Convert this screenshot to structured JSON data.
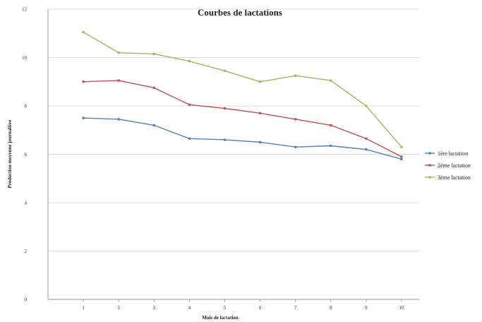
{
  "chart_data": {
    "type": "line",
    "title": "Courbes de lactations",
    "xlabel": "Mois de lactation",
    "ylabel": "Production moyenne journalière",
    "x": [
      1,
      2,
      3,
      4,
      5,
      6,
      7,
      8,
      9,
      10
    ],
    "xlim": [
      0,
      10.5
    ],
    "ylim": [
      0,
      12
    ],
    "yticks": [
      0,
      2,
      4,
      6,
      8,
      10,
      12
    ],
    "grid": true,
    "legend_position": "right",
    "series": [
      {
        "name": "1ère lactation",
        "color": "#4f81bd",
        "values": [
          7.5,
          7.45,
          7.2,
          6.65,
          6.6,
          6.5,
          6.3,
          6.35,
          6.2,
          5.8
        ]
      },
      {
        "name": "2ème lactation",
        "color": "#c0504d",
        "values": [
          9.0,
          9.05,
          8.75,
          8.05,
          7.9,
          7.7,
          7.45,
          7.2,
          6.65,
          5.9
        ]
      },
      {
        "name": "3ème lactation",
        "color": "#9bbb59",
        "values": [
          11.05,
          10.2,
          10.15,
          9.85,
          9.45,
          9.0,
          9.25,
          9.05,
          8.0,
          6.3
        ]
      }
    ]
  }
}
